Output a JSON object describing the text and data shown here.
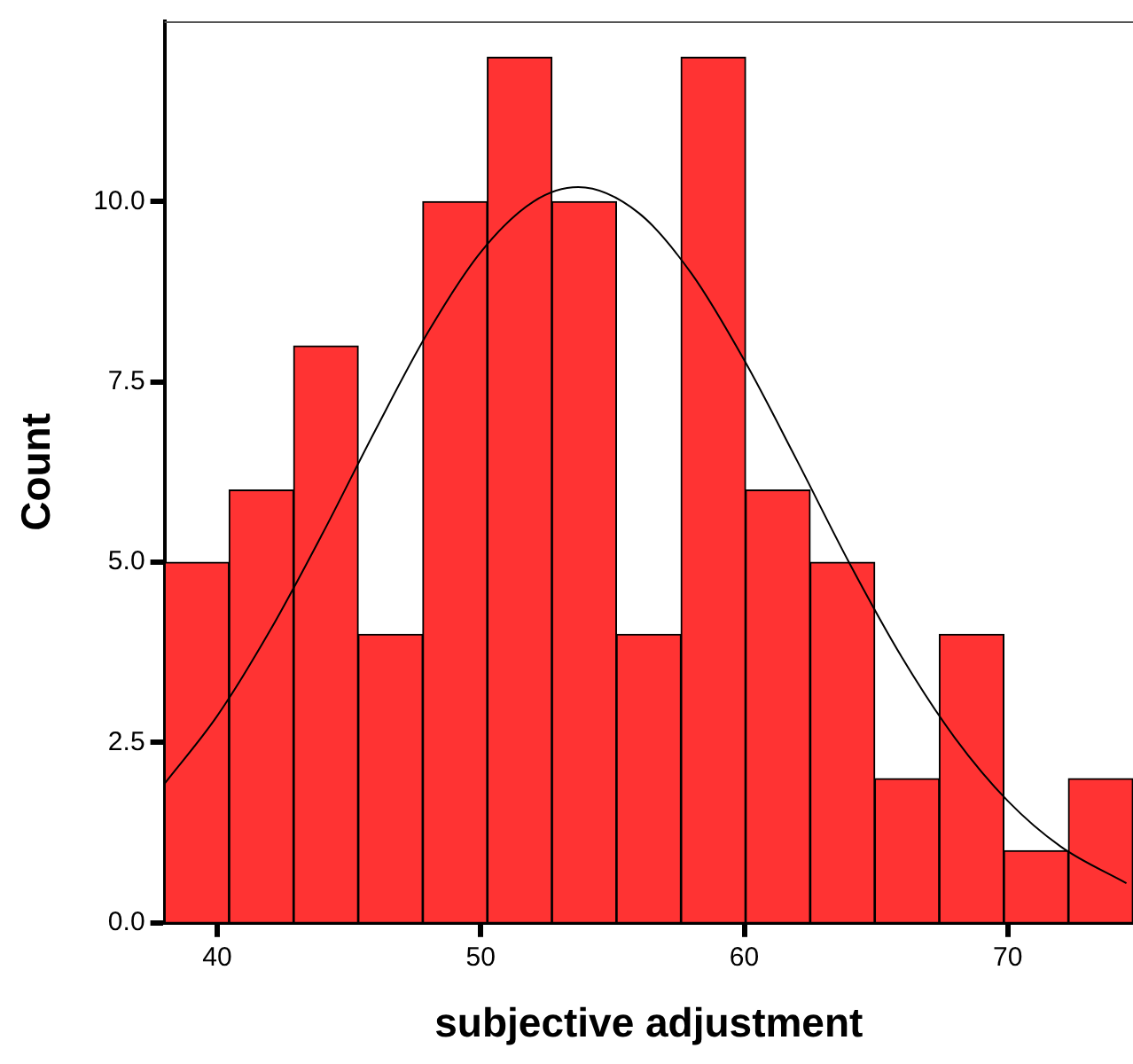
{
  "chart_data": {
    "type": "histogram",
    "xlabel": "subjective adjustment",
    "ylabel": "Count",
    "bins": [
      38,
      40.45,
      42.9,
      45.35,
      47.8,
      50.25,
      52.7,
      55.15,
      57.6,
      60.05,
      62.5,
      64.95,
      67.4,
      69.85,
      72.3,
      74.75
    ],
    "values": [
      5,
      6,
      8,
      4,
      10,
      12,
      10,
      4,
      12,
      6,
      5,
      2,
      4,
      1,
      2
    ],
    "color": "#ff3333",
    "series": [
      {
        "type": "line",
        "color": "#000000",
        "x": [
          38,
          40,
          42,
          44,
          46,
          48,
          50,
          52,
          53.7,
          56,
          58,
          60,
          62,
          64,
          66,
          68,
          70,
          72,
          74.5
        ],
        "values": [
          1.93,
          2.87,
          4.05,
          5.4,
          6.83,
          8.19,
          9.3,
          10,
          10.2,
          9.84,
          9,
          7.8,
          6.41,
          4.98,
          3.67,
          2.56,
          1.69,
          1.06,
          0.55
        ]
      }
    ],
    "xlim": [
      38,
      74.75
    ],
    "ylim": [
      0,
      12.5
    ],
    "xticks": [
      40,
      50,
      60,
      70
    ],
    "yticks": [
      {
        "value": 0,
        "label": "0.0"
      },
      {
        "value": 2.5,
        "label": "2.5"
      },
      {
        "value": 5,
        "label": "5.0"
      },
      {
        "value": 7.5,
        "label": "7.5"
      },
      {
        "value": 10,
        "label": "10.0"
      }
    ],
    "grid": false,
    "marker": "none",
    "line_style": "solid"
  }
}
